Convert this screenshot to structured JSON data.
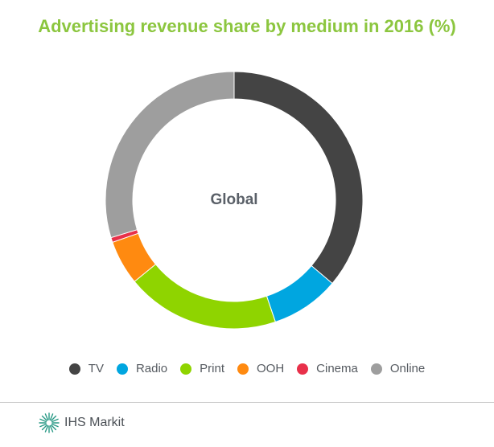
{
  "chart_data": {
    "type": "pie",
    "title": "Advertising revenue share by medium in 2016 (%)",
    "center_label": "Global",
    "categories": [
      "TV",
      "Radio",
      "Print",
      "OOH",
      "Cinema",
      "Online"
    ],
    "values": [
      36.2,
      8.6,
      19.3,
      5.6,
      0.6,
      29.7
    ],
    "colors": [
      "#444444",
      "#00a6e0",
      "#8fd400",
      "#ff8a10",
      "#e8304a",
      "#9e9e9e"
    ],
    "legend_position": "bottom",
    "donut": true
  },
  "footer": {
    "brand": "IHS Markit",
    "logo_icon": "ihs-markit-fan-icon",
    "logo_color": "#2a9a86"
  }
}
